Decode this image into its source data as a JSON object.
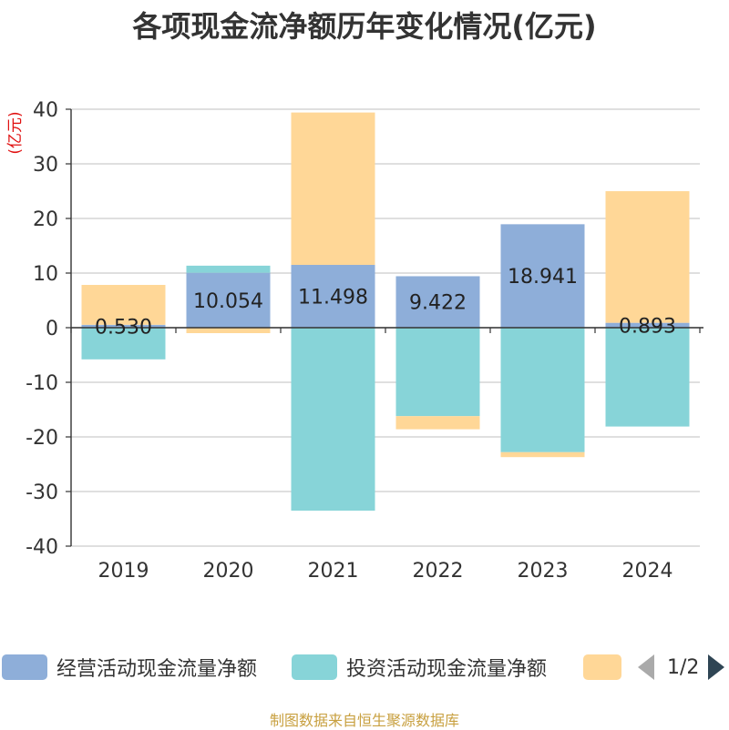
{
  "chart_data": {
    "type": "bar",
    "stacked": true,
    "title": "各项现金流净额历年变化情况(亿元)",
    "ylabel": "(亿元)",
    "xlabel": "",
    "ylim": [
      -40,
      40
    ],
    "yticks": [
      40,
      30,
      20,
      10,
      0,
      -10,
      -20,
      -30,
      -40
    ],
    "grid": true,
    "legend_position": "bottom",
    "categories": [
      "2019",
      "2020",
      "2021",
      "2022",
      "2023",
      "2024"
    ],
    "series": [
      {
        "name": "经营活动现金流量净额",
        "color": "#8eaed9",
        "values": [
          0.53,
          10.054,
          11.498,
          9.422,
          18.941,
          0.893
        ],
        "labels": [
          "0.530",
          "10.054",
          "11.498",
          "9.422",
          "18.941",
          "0.893"
        ]
      },
      {
        "name": "投资活动现金流量净额",
        "color": "#87d4d8",
        "values": [
          -5.8,
          1.3,
          -33.5,
          -16.2,
          -22.8,
          -18.1
        ]
      },
      {
        "name": "",
        "color": "#ffd797",
        "values": [
          7.3,
          -1.0,
          27.9,
          -2.4,
          -0.9,
          24.1
        ]
      }
    ]
  },
  "legend": {
    "items": [
      {
        "label": "经营活动现金流量净额",
        "color": "#8eaed9"
      },
      {
        "label": "投资活动现金流量净额",
        "color": "#87d4d8"
      },
      {
        "label": "",
        "color": "#ffd797"
      }
    ],
    "pager": "1/2"
  },
  "source_note": "制图数据来自恒生聚源数据库"
}
